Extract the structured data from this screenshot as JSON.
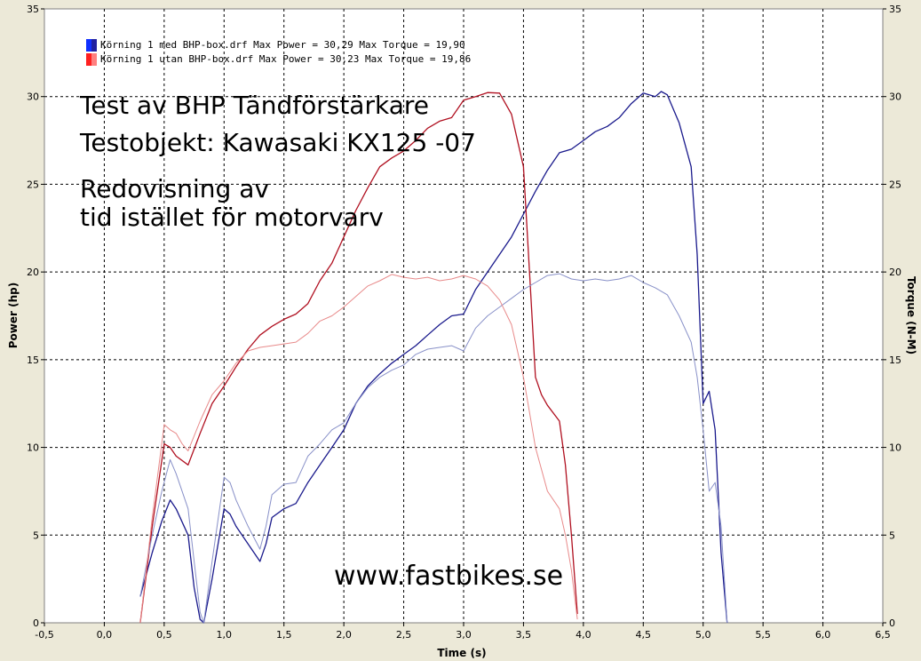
{
  "chart_data": {
    "type": "line",
    "xlabel": "Time (s)",
    "ylabel": "Power (hp)",
    "y2label": "Torque (N-M)",
    "xlim": [
      -0.5,
      6.5
    ],
    "ylim": [
      0,
      35
    ],
    "y2lim": [
      0,
      35
    ],
    "grid": true,
    "legend_position": "top-left",
    "x_ticks": [
      "-0,5",
      "0,0",
      "0,5",
      "1,0",
      "1,5",
      "2,0",
      "2,5",
      "3,0",
      "3,5",
      "4,0",
      "4,5",
      "5,0",
      "5,5",
      "6,0",
      "6,5"
    ],
    "y_ticks": [
      "0",
      "5",
      "10",
      "15",
      "20",
      "25",
      "30",
      "35"
    ],
    "y2_ticks": [
      "0",
      "5",
      "10",
      "15",
      "20",
      "25",
      "30",
      "35"
    ],
    "legend": [
      {
        "text": "Körning 1 med BHP-box.drf Max Power = 30,29 Max Torque = 19,90",
        "color": "#1030ff"
      },
      {
        "text": "Körning 1 utan BHP-box.drf Max Power = 30,23 Max Torque = 19,86",
        "color": "#ff2020"
      }
    ],
    "annotations": [
      "Test av BHP Tändförstärkare",
      "Testobjekt: Kawasaki KX125 -07",
      "Redovisning av",
      "tid istället för motorvarv",
      "www.fastbikes.se"
    ],
    "series": [
      {
        "kind": "power",
        "axis": "left",
        "color": "#1a1a8c",
        "x": [
          0.3,
          0.4,
          0.48,
          0.55,
          0.6,
          0.7,
          0.75,
          0.8,
          0.83,
          0.9,
          1.0,
          1.05,
          1.1,
          1.2,
          1.3,
          1.35,
          1.4,
          1.5,
          1.6,
          1.7,
          1.8,
          1.9,
          2.0,
          2.1,
          2.2,
          2.3,
          2.4,
          2.5,
          2.6,
          2.7,
          2.8,
          2.9,
          3.0,
          3.1,
          3.2,
          3.3,
          3.4,
          3.5,
          3.6,
          3.7,
          3.8,
          3.9,
          4.0,
          4.1,
          4.2,
          4.3,
          4.4,
          4.5,
          4.6,
          4.65,
          4.7,
          4.8,
          4.9,
          4.95,
          5.0,
          5.05,
          5.1,
          5.15,
          5.2
        ],
        "y": [
          1.5,
          4.0,
          5.8,
          7.0,
          6.5,
          5.0,
          2.0,
          0.2,
          0.0,
          2.5,
          6.5,
          6.2,
          5.5,
          4.5,
          3.5,
          4.5,
          6.0,
          6.5,
          6.8,
          8.0,
          9.0,
          10.0,
          11.0,
          12.5,
          13.5,
          14.2,
          14.8,
          15.3,
          15.8,
          16.4,
          17.0,
          17.5,
          17.6,
          19.0,
          20.0,
          21.0,
          22.0,
          23.3,
          24.6,
          25.8,
          26.8,
          27.0,
          27.5,
          28.0,
          28.3,
          28.8,
          29.6,
          30.2,
          30.0,
          30.29,
          30.1,
          28.5,
          26.0,
          21.0,
          12.5,
          13.2,
          11.0,
          4.0,
          0.0
        ]
      },
      {
        "kind": "power",
        "axis": "left",
        "color": "#b01020",
        "x": [
          0.3,
          0.4,
          0.5,
          0.55,
          0.6,
          0.7,
          0.8,
          0.9,
          1.0,
          1.1,
          1.2,
          1.3,
          1.4,
          1.5,
          1.6,
          1.7,
          1.8,
          1.9,
          2.0,
          2.1,
          2.2,
          2.3,
          2.4,
          2.5,
          2.6,
          2.7,
          2.8,
          2.9,
          3.0,
          3.1,
          3.2,
          3.3,
          3.4,
          3.5,
          3.55,
          3.6,
          3.65,
          3.7,
          3.8,
          3.85,
          3.9,
          3.95
        ],
        "y": [
          0.0,
          5.5,
          10.2,
          10.0,
          9.5,
          9.0,
          10.8,
          12.5,
          13.5,
          14.6,
          15.6,
          16.4,
          16.9,
          17.3,
          17.6,
          18.2,
          19.5,
          20.5,
          22.0,
          23.5,
          24.8,
          26.0,
          26.5,
          26.9,
          27.5,
          28.2,
          28.6,
          28.8,
          29.8,
          30.0,
          30.23,
          30.2,
          29.0,
          26.0,
          20.0,
          14.0,
          13.0,
          12.4,
          11.5,
          9.0,
          5.0,
          0.5
        ]
      },
      {
        "kind": "torque",
        "axis": "right",
        "color": "#8890c8",
        "x": [
          0.3,
          0.4,
          0.48,
          0.55,
          0.6,
          0.7,
          0.75,
          0.8,
          0.83,
          0.9,
          1.0,
          1.05,
          1.1,
          1.2,
          1.3,
          1.35,
          1.4,
          1.5,
          1.6,
          1.7,
          1.8,
          1.9,
          2.0,
          2.1,
          2.2,
          2.3,
          2.4,
          2.5,
          2.6,
          2.7,
          2.8,
          2.9,
          3.0,
          3.1,
          3.2,
          3.3,
          3.4,
          3.5,
          3.6,
          3.7,
          3.8,
          3.9,
          4.0,
          4.1,
          4.2,
          4.3,
          4.4,
          4.5,
          4.6,
          4.7,
          4.8,
          4.9,
          4.95,
          5.0,
          5.05,
          5.1,
          5.15,
          5.2
        ],
        "y": [
          1.5,
          5.0,
          7.5,
          9.3,
          8.5,
          6.5,
          3.5,
          0.6,
          0.0,
          3.5,
          8.3,
          8.0,
          7.0,
          5.5,
          4.2,
          5.5,
          7.3,
          7.9,
          8.0,
          9.5,
          10.2,
          11.0,
          11.4,
          12.5,
          13.4,
          14.0,
          14.4,
          14.7,
          15.3,
          15.6,
          15.7,
          15.8,
          15.5,
          16.8,
          17.5,
          18.0,
          18.5,
          19.0,
          19.4,
          19.8,
          19.9,
          19.6,
          19.5,
          19.6,
          19.5,
          19.6,
          19.8,
          19.4,
          19.1,
          18.7,
          17.5,
          16.0,
          14.0,
          11.0,
          7.5,
          8.0,
          5.5,
          0.0
        ]
      },
      {
        "kind": "torque",
        "axis": "right",
        "color": "#e88a8a",
        "x": [
          0.3,
          0.4,
          0.5,
          0.55,
          0.6,
          0.65,
          0.7,
          0.8,
          0.9,
          1.0,
          1.1,
          1.2,
          1.3,
          1.4,
          1.5,
          1.6,
          1.7,
          1.8,
          1.9,
          2.0,
          2.1,
          2.2,
          2.3,
          2.4,
          2.5,
          2.6,
          2.7,
          2.8,
          2.9,
          3.0,
          3.1,
          3.2,
          3.3,
          3.4,
          3.5,
          3.55,
          3.6,
          3.7,
          3.8,
          3.85,
          3.9,
          3.95
        ],
        "y": [
          0.0,
          6.0,
          11.3,
          11.0,
          10.8,
          10.2,
          9.8,
          11.5,
          13.0,
          13.8,
          14.8,
          15.5,
          15.7,
          15.8,
          15.9,
          16.0,
          16.5,
          17.2,
          17.5,
          18.0,
          18.6,
          19.2,
          19.5,
          19.86,
          19.7,
          19.6,
          19.7,
          19.5,
          19.6,
          19.8,
          19.6,
          19.2,
          18.4,
          17.0,
          14.0,
          12.0,
          10.0,
          7.5,
          6.5,
          5.0,
          3.0,
          0.2
        ]
      }
    ]
  }
}
